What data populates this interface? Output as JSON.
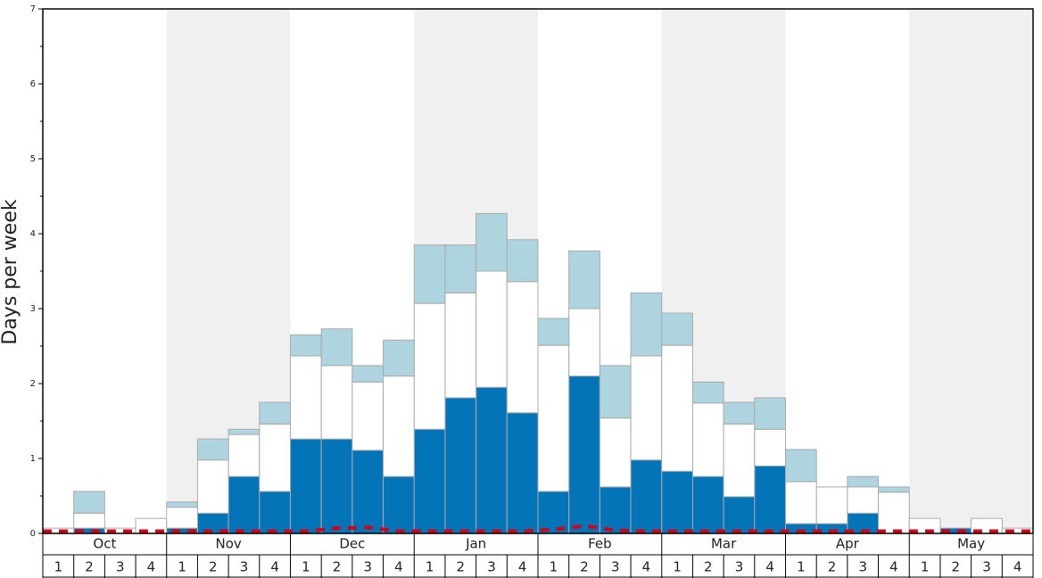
{
  "chart_data": {
    "type": "bar",
    "y_label": "Days per week",
    "months": [
      "Oct",
      "Nov",
      "Dec",
      "Jan",
      "Feb",
      "Mar",
      "Apr",
      "May"
    ],
    "categories": [
      "1",
      "2",
      "3",
      "4",
      "1",
      "2",
      "3",
      "4",
      "1",
      "2",
      "3",
      "4",
      "1",
      "2",
      "3",
      "4",
      "1",
      "2",
      "3",
      "4",
      "1",
      "2",
      "3",
      "4",
      "1",
      "2",
      "3",
      "4",
      "1",
      "2",
      "3",
      "4"
    ],
    "ylim": [
      0,
      7
    ],
    "yticks": [
      0,
      1,
      2,
      3,
      4,
      5,
      6,
      7
    ],
    "minor_yticks": [
      0.5,
      1.5,
      2.5,
      3.5,
      4.5,
      5.5,
      6.5
    ],
    "series": [
      {
        "color": "#0474b8",
        "values": [
          0,
          0.07,
          0,
          0,
          0.07,
          0.27,
          0.76,
          0.56,
          1.26,
          1.26,
          1.11,
          0.76,
          1.39,
          1.81,
          1.95,
          1.61,
          0.56,
          2.1,
          0.62,
          0.98,
          0.83,
          0.76,
          0.49,
          0.9,
          0.13,
          0.13,
          0.27,
          0,
          0,
          0.07,
          0,
          0
        ]
      },
      {
        "color": "#ffffff",
        "values": [
          0.07,
          0.2,
          0.07,
          0.2,
          0.28,
          0.71,
          0.56,
          0.9,
          1.11,
          0.98,
          0.91,
          1.34,
          1.68,
          1.4,
          1.55,
          1.75,
          1.95,
          0.9,
          0.92,
          1.39,
          1.68,
          0.98,
          0.97,
          0.49,
          0.56,
          0.49,
          0.35,
          0.55,
          0.2,
          0,
          0.2,
          0.07
        ]
      },
      {
        "color": "#aed4e0",
        "values": [
          0,
          0.29,
          0,
          0,
          0.07,
          0.28,
          0.07,
          0.29,
          0.28,
          0.49,
          0.22,
          0.48,
          0.78,
          0.64,
          0.77,
          0.56,
          0.36,
          0.77,
          0.7,
          0.84,
          0.43,
          0.28,
          0.29,
          0.42,
          0.43,
          0,
          0.14,
          0.07,
          0,
          0,
          0,
          0
        ]
      },
      {
        "type": "line",
        "color": "#d0021b",
        "values": [
          0.03,
          0.03,
          0.03,
          0.03,
          0.03,
          0.03,
          0.03,
          0.03,
          0.03,
          0.07,
          0.08,
          0.03,
          0.03,
          0.03,
          0.03,
          0.03,
          0.05,
          0.1,
          0.04,
          0.03,
          0.03,
          0.03,
          0.03,
          0.03,
          0.03,
          0.03,
          0.03,
          0.03,
          0.03,
          0.03,
          0.03,
          0.03
        ]
      }
    ]
  }
}
